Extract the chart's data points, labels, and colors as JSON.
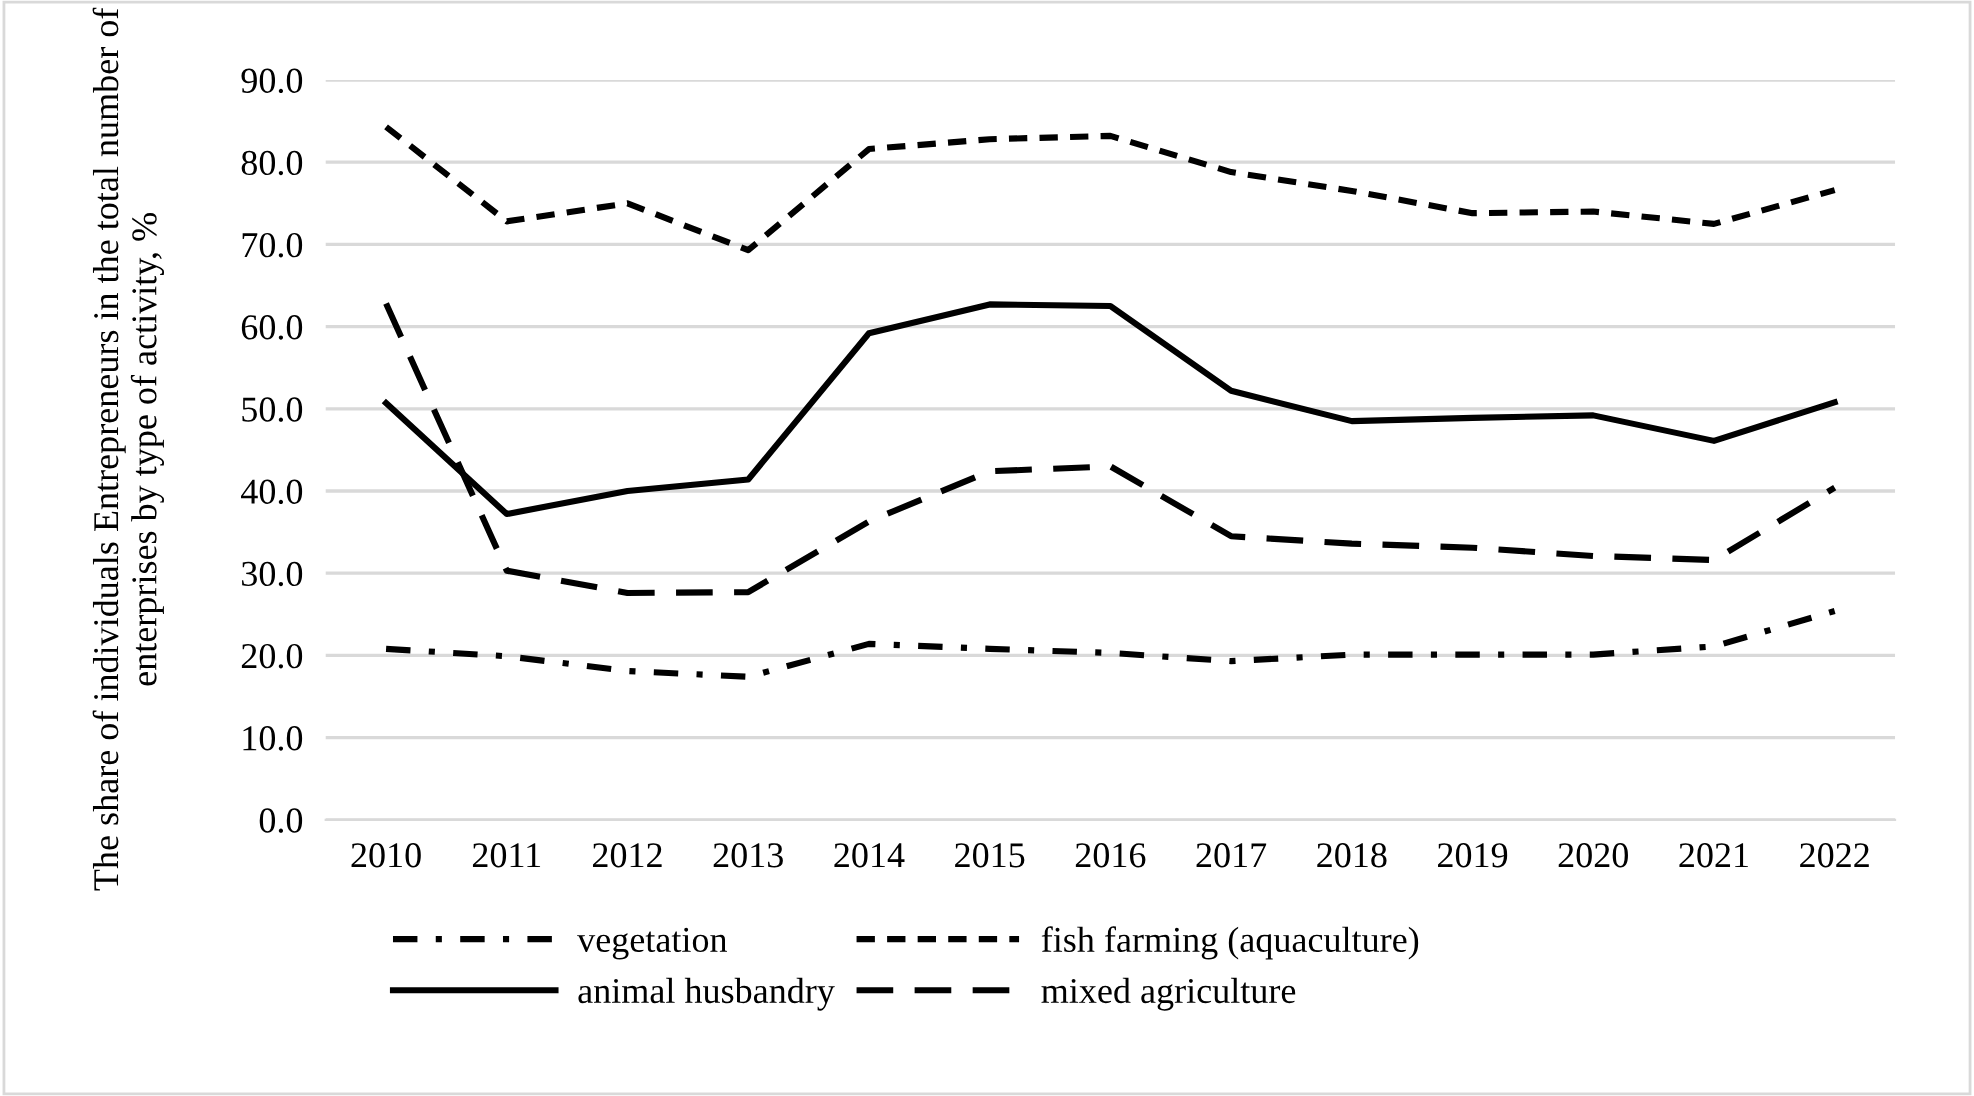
{
  "chart_data": {
    "type": "line",
    "ylabel": "The share of individuals Entrepreneurs in the total number of enterprises by type of activity, %",
    "categories": [
      "2010",
      "2011",
      "2012",
      "2013",
      "2014",
      "2015",
      "2016",
      "2017",
      "2018",
      "2019",
      "2020",
      "2021",
      "2022"
    ],
    "series": [
      {
        "name": "vegetation",
        "color": "#000000",
        "line_style": "dashdot",
        "values": [
          20.8,
          19.9,
          18.1,
          17.4,
          21.4,
          20.8,
          20.3,
          19.3,
          20.1,
          20.1,
          20.1,
          21.1,
          25.4
        ]
      },
      {
        "name": "animal husbandry",
        "color": "#000000",
        "line_style": "solid",
        "values": [
          50.7,
          37.2,
          40.0,
          41.4,
          59.2,
          62.7,
          62.5,
          52.2,
          48.5,
          48.9,
          49.2,
          46.1,
          50.8
        ]
      },
      {
        "name": "fish farming (aquaculture)",
        "color": "#000000",
        "line_style": "dashed",
        "values": [
          84.3,
          72.8,
          75.0,
          69.3,
          81.6,
          82.8,
          83.2,
          78.8,
          76.5,
          73.8,
          74.0,
          72.5,
          76.6
        ]
      },
      {
        "name": "mixed agriculture",
        "color": "#000000",
        "line_style": "longdash",
        "values": [
          62.8,
          30.3,
          27.6,
          27.7,
          36.3,
          42.4,
          43.0,
          34.5,
          33.6,
          33.1,
          32.1,
          31.6,
          40.4
        ]
      }
    ],
    "ylim": [
      0,
      90
    ],
    "yticks": [
      {
        "value": 0,
        "label": "0.0"
      },
      {
        "value": 10,
        "label": "10.0"
      },
      {
        "value": 20,
        "label": "20.0"
      },
      {
        "value": 30,
        "label": "30.0"
      },
      {
        "value": 40,
        "label": "40.0"
      },
      {
        "value": 50,
        "label": "50.0"
      },
      {
        "value": 60,
        "label": "60.0"
      },
      {
        "value": 70,
        "label": "70.0"
      },
      {
        "value": 80,
        "label": "80.0"
      },
      {
        "value": 90,
        "label": "90.0"
      }
    ],
    "grid": "y",
    "legend": "bottom",
    "marker": "none"
  }
}
